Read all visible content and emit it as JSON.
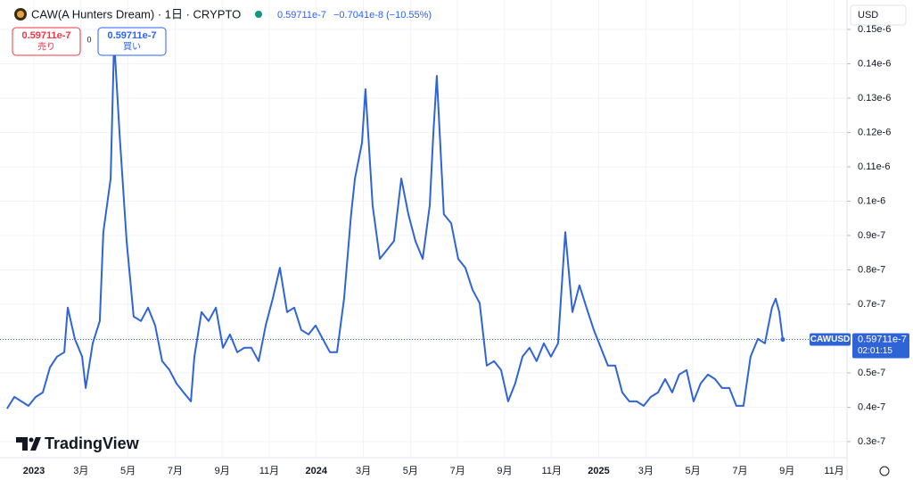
{
  "header": {
    "symbol": "CAW(A Hunters Dream) · 1日 · CRYPTO",
    "price": "0.59711e-7",
    "change": "−0.7041e-8",
    "change_pct": "(−10.55%)",
    "currency": "USD"
  },
  "order": {
    "sell_price": "0.59711e-7",
    "sell": "売り",
    "spread": "0",
    "buy_price": "0.59711e-7",
    "buy": "買い"
  },
  "price_tag": {
    "symbol": "CAWUSD",
    "price": "0.59711e-7",
    "countdown": "02:01:15"
  },
  "logo": "TradingView",
  "chart_data": {
    "type": "line",
    "x": [
      -1.14,
      -0.83,
      -0.53,
      -0.23,
      0.08,
      0.38,
      0.68,
      0.98,
      1.29,
      1.44,
      1.74,
      2.05,
      2.2,
      2.5,
      2.8,
      2.95,
      3.26,
      3.41,
      3.64,
      3.94,
      4.24,
      4.55,
      4.85,
      5.15,
      5.45,
      5.76,
      6.06,
      6.36,
      6.67,
      6.82,
      7.12,
      7.42,
      7.73,
      8.03,
      8.33,
      8.64,
      8.94,
      9.24,
      9.55,
      9.85,
      10.15,
      10.45,
      10.76,
      11.06,
      11.36,
      11.67,
      11.97,
      12.27,
      12.58,
      12.88,
      13.18,
      13.48,
      13.64,
      13.94,
      14.09,
      14.39,
      14.7,
      15.0,
      15.3,
      15.61,
      15.91,
      16.21,
      16.52,
      16.82,
      16.97,
      17.12,
      17.42,
      17.73,
      18.03,
      18.33,
      18.64,
      18.94,
      19.24,
      19.55,
      19.85,
      20.15,
      20.45,
      20.76,
      21.06,
      21.36,
      21.67,
      21.97,
      22.27,
      22.58,
      22.88,
      23.18,
      23.48,
      23.79,
      24.09,
      24.39,
      24.7,
      25.0,
      25.3,
      25.61,
      25.91,
      26.21,
      26.52,
      26.82,
      27.12,
      27.42,
      27.73,
      28.03,
      28.33,
      28.64,
      28.94,
      29.24,
      29.55,
      29.85,
      30.15,
      30.45,
      30.76,
      31.06,
      31.36,
      31.52,
      31.67,
      31.82
    ],
    "series": [
      {
        "name": "CAWUSD",
        "color": "#2f64d9",
        "values": [
          3.96e-08,
          4.3e-08,
          4.17e-08,
          4.04e-08,
          4.3e-08,
          4.43e-08,
          5.16e-08,
          5.47e-08,
          5.6e-08,
          6.9e-08,
          5.99e-08,
          5.47e-08,
          4.56e-08,
          5.86e-08,
          6.51e-08,
          9.1e-08,
          1.066e-07,
          1.469e-07,
          1.196e-07,
          8.84e-08,
          6.64e-08,
          6.51e-08,
          6.9e-08,
          6.38e-08,
          5.34e-08,
          5.08e-08,
          4.69e-08,
          4.43e-08,
          4.17e-08,
          5.47e-08,
          6.77e-08,
          6.51e-08,
          6.9e-08,
          5.73e-08,
          6.12e-08,
          5.6e-08,
          5.73e-08,
          5.73e-08,
          5.34e-08,
          6.38e-08,
          7.16e-08,
          8.06e-08,
          6.77e-08,
          6.9e-08,
          6.25e-08,
          6.12e-08,
          6.38e-08,
          5.99e-08,
          5.6e-08,
          5.6e-08,
          7.16e-08,
          9.62e-08,
          1.066e-07,
          1.17e-07,
          1.326e-07,
          9.88e-08,
          8.32e-08,
          8.58e-08,
          8.84e-08,
          1.066e-07,
          9.62e-08,
          8.84e-08,
          8.32e-08,
          9.88e-08,
          1.196e-07,
          1.365e-07,
          9.62e-08,
          9.36e-08,
          8.32e-08,
          8.06e-08,
          7.42e-08,
          7.03e-08,
          5.21e-08,
          5.34e-08,
          5.08e-08,
          4.17e-08,
          4.69e-08,
          5.47e-08,
          5.73e-08,
          5.34e-08,
          5.86e-08,
          5.47e-08,
          5.86e-08,
          9.1e-08,
          6.77e-08,
          7.55e-08,
          6.9e-08,
          6.25e-08,
          5.73e-08,
          5.21e-08,
          5.21e-08,
          4.43e-08,
          4.17e-08,
          4.17e-08,
          4.04e-08,
          4.3e-08,
          4.43e-08,
          4.82e-08,
          4.43e-08,
          4.95e-08,
          5.08e-08,
          4.17e-08,
          4.69e-08,
          4.95e-08,
          4.82e-08,
          4.56e-08,
          4.56e-08,
          4.04e-08,
          4.04e-08,
          5.47e-08,
          5.99e-08,
          5.86e-08,
          6.9e-08,
          7.16e-08,
          6.77e-08,
          5.9711e-08
        ]
      }
    ],
    "xlim": [
      -1.44,
      34.55
    ],
    "xticks": [
      {
        "value": 0,
        "label": "2023"
      },
      {
        "value": 2,
        "label": "3月"
      },
      {
        "value": 4,
        "label": "5月"
      },
      {
        "value": 6,
        "label": "7月"
      },
      {
        "value": 8,
        "label": "9月"
      },
      {
        "value": 10,
        "label": "11月"
      },
      {
        "value": 12,
        "label": "2024"
      },
      {
        "value": 14,
        "label": "3月"
      },
      {
        "value": 16,
        "label": "5月"
      },
      {
        "value": 18,
        "label": "7月"
      },
      {
        "value": 20,
        "label": "9月"
      },
      {
        "value": 22,
        "label": "11月"
      },
      {
        "value": 24,
        "label": "2025"
      },
      {
        "value": 26,
        "label": "3月"
      },
      {
        "value": 28,
        "label": "5月"
      },
      {
        "value": 30,
        "label": "7月"
      },
      {
        "value": 32,
        "label": "9月"
      },
      {
        "value": 34,
        "label": "11月"
      }
    ],
    "ylim": [
      2.53e-08,
      1.513e-07
    ],
    "yticks": [
      {
        "value": 3e-08,
        "label": "0.3e-7"
      },
      {
        "value": 4e-08,
        "label": "0.4e-7"
      },
      {
        "value": 5e-08,
        "label": "0.5e-7"
      },
      {
        "value": 6e-08,
        "label": "0.6e-7"
      },
      {
        "value": 7e-08,
        "label": "0.7e-7"
      },
      {
        "value": 8e-08,
        "label": "0.8e-7"
      },
      {
        "value": 9e-08,
        "label": "0.9e-7"
      },
      {
        "value": 1e-07,
        "label": "0.1e-6"
      },
      {
        "value": 1.1e-07,
        "label": "0.11e-6"
      },
      {
        "value": 1.2e-07,
        "label": "0.12e-6"
      },
      {
        "value": 1.3e-07,
        "label": "0.13e-6"
      },
      {
        "value": 1.4e-07,
        "label": "0.14e-6"
      },
      {
        "value": 1.5e-07,
        "label": "0.15e-6"
      }
    ],
    "grid": true
  }
}
